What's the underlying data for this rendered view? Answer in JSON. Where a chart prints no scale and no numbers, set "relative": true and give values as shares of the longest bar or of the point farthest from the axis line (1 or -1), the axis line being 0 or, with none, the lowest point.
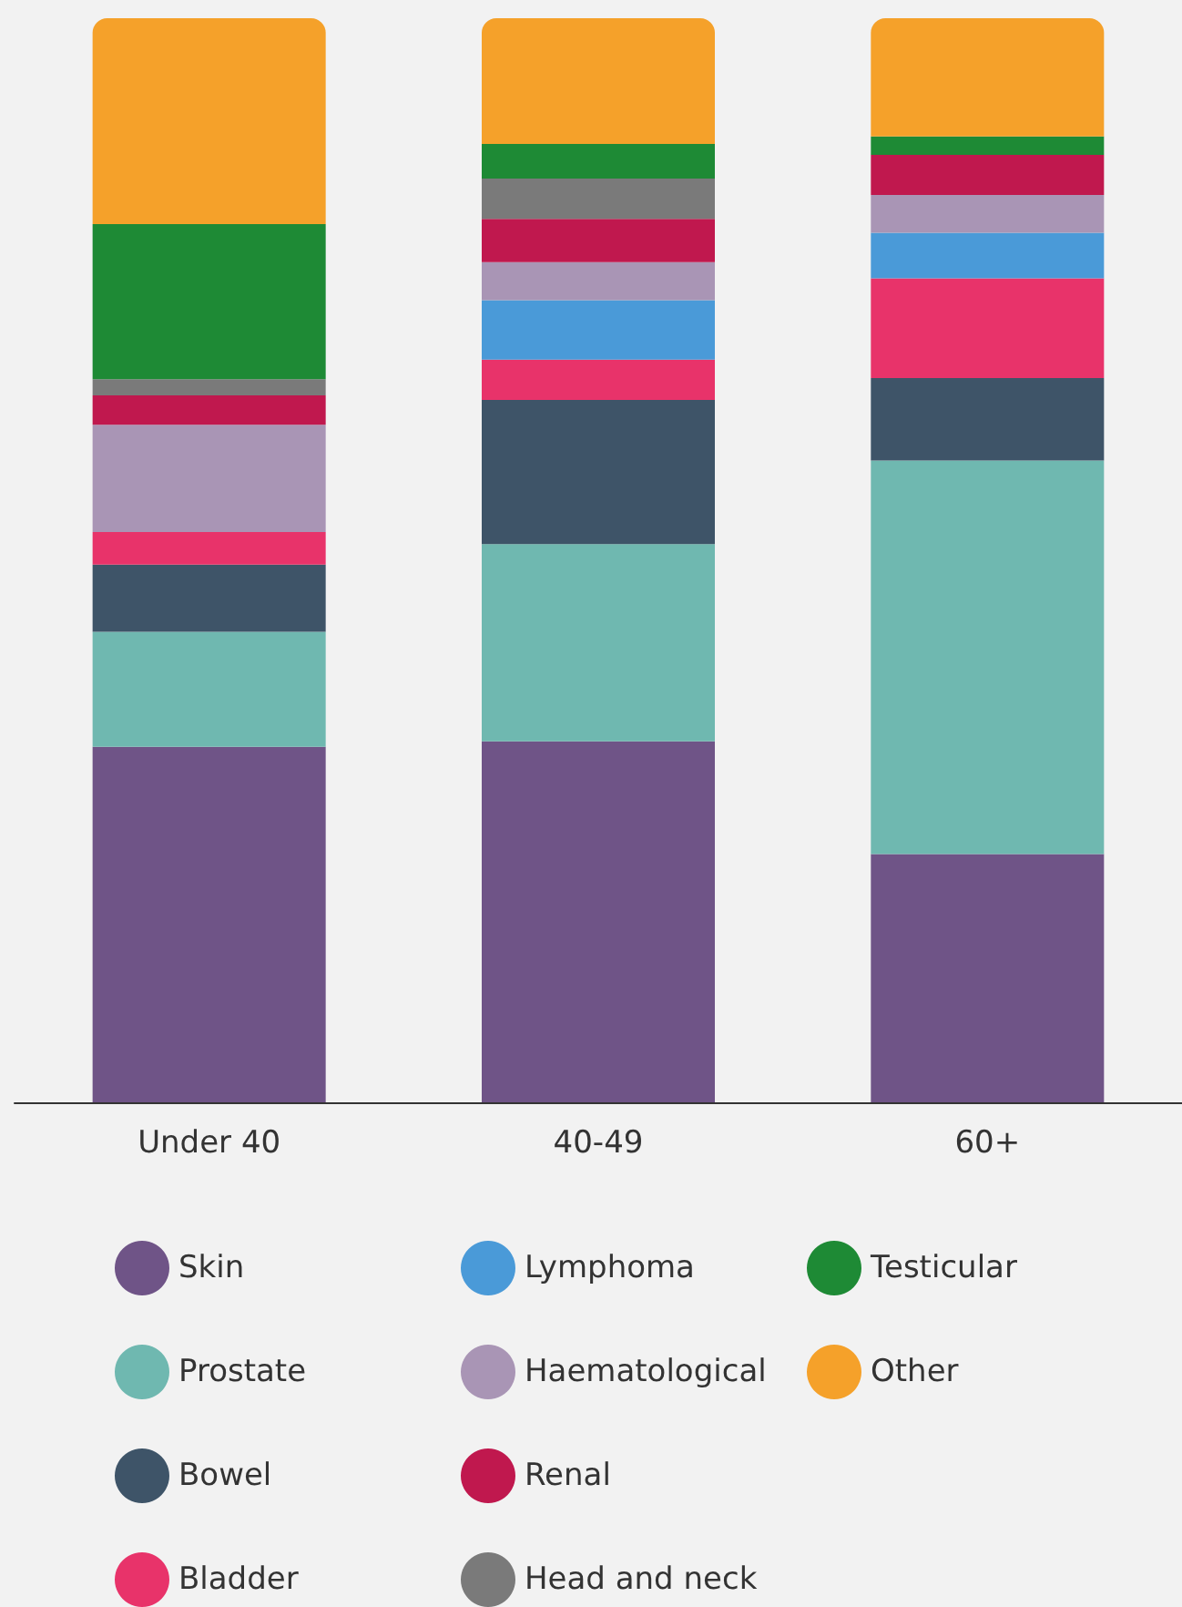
{
  "chart_data": {
    "type": "bar",
    "stacked": true,
    "relative": true,
    "categories": [
      "Under 40",
      "40-49",
      "60+"
    ],
    "legend": "bottom",
    "series": [
      {
        "name": "Skin",
        "color": "#6f5487",
        "values": [
          0.328,
          0.333,
          0.229
        ]
      },
      {
        "name": "Prostate",
        "color": "#6fb8b0",
        "values": [
          0.106,
          0.182,
          0.363
        ]
      },
      {
        "name": "Bowel",
        "color": "#3e5468",
        "values": [
          0.062,
          0.133,
          0.076
        ]
      },
      {
        "name": "Bladder",
        "color": "#e8336a",
        "values": [
          0.03,
          0.037,
          0.092
        ]
      },
      {
        "name": "Lymphoma",
        "color": "#4a9ad8",
        "values": [
          null,
          0.055,
          0.042
        ]
      },
      {
        "name": "Haematological",
        "color": "#a995b5",
        "values": [
          0.099,
          0.035,
          0.035
        ]
      },
      {
        "name": "Renal",
        "color": "#c0184e",
        "values": [
          0.027,
          0.04,
          0.037
        ]
      },
      {
        "name": "Head and neck",
        "color": "#7a7a7a",
        "values": [
          0.015,
          0.037,
          null
        ]
      },
      {
        "name": "Testicular",
        "color": "#1e8a35",
        "values": [
          0.143,
          0.032,
          0.017
        ]
      },
      {
        "name": "Other",
        "color": "#f5a12a",
        "values": [
          0.19,
          0.116,
          0.109
        ]
      }
    ]
  }
}
